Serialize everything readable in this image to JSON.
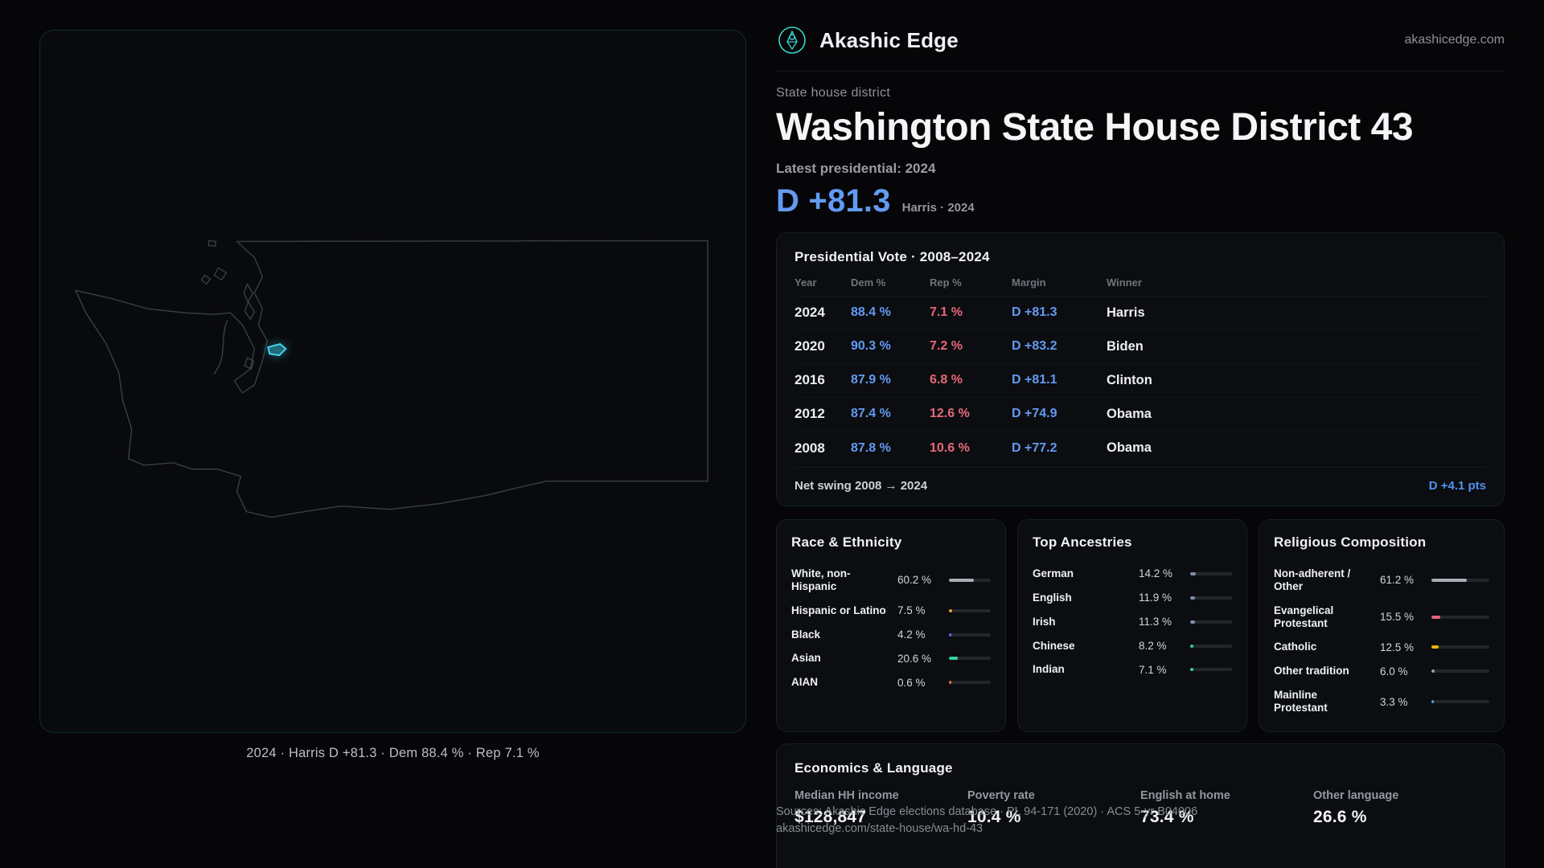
{
  "brand": {
    "name": "Akashic Edge",
    "domain": "akashicedge.com"
  },
  "header": {
    "kicker": "State house district",
    "title": "Washington State House District 43",
    "latest_label": "Latest presidential: 2024",
    "headline_margin": "D +81.3",
    "headline_sub": "Harris · 2024"
  },
  "map": {
    "caption": "2024 · Harris D +81.3 · Dem 88.4 % · Rep 7.1 %",
    "highlighted_district": "Washington State House District 43"
  },
  "colors": {
    "dem": "#639af2",
    "rep": "#e66878",
    "accent": "#3bd4cd",
    "highlight": "#41d8f2"
  },
  "pres_table": {
    "title": "Presidential Vote · 2008–2024",
    "columns": [
      "Year",
      "Dem %",
      "Rep %",
      "Margin",
      "Winner"
    ],
    "rows": [
      {
        "year": "2024",
        "dem": "88.4 %",
        "rep": "7.1 %",
        "margin": "D +81.3",
        "winner": "Harris"
      },
      {
        "year": "2020",
        "dem": "90.3 %",
        "rep": "7.2 %",
        "margin": "D +83.2",
        "winner": "Biden"
      },
      {
        "year": "2016",
        "dem": "87.9 %",
        "rep": "6.8 %",
        "margin": "D +81.1",
        "winner": "Clinton"
      },
      {
        "year": "2012",
        "dem": "87.4 %",
        "rep": "12.6 %",
        "margin": "D +74.9",
        "winner": "Obama"
      },
      {
        "year": "2008",
        "dem": "87.8 %",
        "rep": "10.6 %",
        "margin": "D +77.2",
        "winner": "Obama"
      }
    ],
    "net_swing_label": "Net swing 2008 → 2024",
    "net_swing_value": "D +4.1 pts"
  },
  "race": {
    "title": "Race & Ethnicity",
    "items": [
      {
        "label": "White, non-Hispanic",
        "value": "60.2 %",
        "pct": 60.2,
        "color": "#a8adb5"
      },
      {
        "label": "Hispanic or Latino",
        "value": "7.5 %",
        "pct": 7.5,
        "color": "#e5a43e"
      },
      {
        "label": "Black",
        "value": "4.2 %",
        "pct": 4.2,
        "color": "#6f6af0"
      },
      {
        "label": "Asian",
        "value": "20.6 %",
        "pct": 20.6,
        "color": "#34d399"
      },
      {
        "label": "AIAN",
        "value": "0.6 %",
        "pct": 0.6,
        "color": "#e0783f"
      }
    ]
  },
  "ancestries": {
    "title": "Top Ancestries",
    "items": [
      {
        "label": "German",
        "value": "14.2 %",
        "pct": 14.2,
        "color": "#7d8fa8"
      },
      {
        "label": "English",
        "value": "11.9 %",
        "pct": 11.9,
        "color": "#7d8fa8"
      },
      {
        "label": "Irish",
        "value": "11.3 %",
        "pct": 11.3,
        "color": "#7d8fa8"
      },
      {
        "label": "Chinese",
        "value": "8.2 %",
        "pct": 8.2,
        "color": "#2fd4a4"
      },
      {
        "label": "Indian",
        "value": "7.1 %",
        "pct": 7.1,
        "color": "#2fd4a4"
      }
    ]
  },
  "religion": {
    "title": "Religious Composition",
    "items": [
      {
        "label": "Non-adherent / Other",
        "value": "61.2 %",
        "pct": 61.2,
        "color": "#a8adb5"
      },
      {
        "label": "Evangelical Protestant",
        "value": "15.5 %",
        "pct": 15.5,
        "color": "#e56585"
      },
      {
        "label": "Catholic",
        "value": "12.5 %",
        "pct": 12.5,
        "color": "#eab308"
      },
      {
        "label": "Other tradition",
        "value": "6.0 %",
        "pct": 6.0,
        "color": "#9aa0a8"
      },
      {
        "label": "Mainline Protestant",
        "value": "3.3 %",
        "pct": 3.3,
        "color": "#5b9bf0"
      }
    ]
  },
  "economics": {
    "title": "Economics & Language",
    "stats": [
      {
        "label": "Median HH income",
        "value": "$128,847"
      },
      {
        "label": "Poverty rate",
        "value": "10.4 %"
      },
      {
        "label": "English at home",
        "value": "73.4 %"
      },
      {
        "label": "Other language",
        "value": "26.6 %"
      }
    ]
  },
  "footer": {
    "sources_line1": "Sources: Akashic Edge elections database · PL 94-171 (2020) · ACS 5-yr B04006",
    "sources_line2": "akashicedge.com/state-house/wa-hd-43"
  }
}
